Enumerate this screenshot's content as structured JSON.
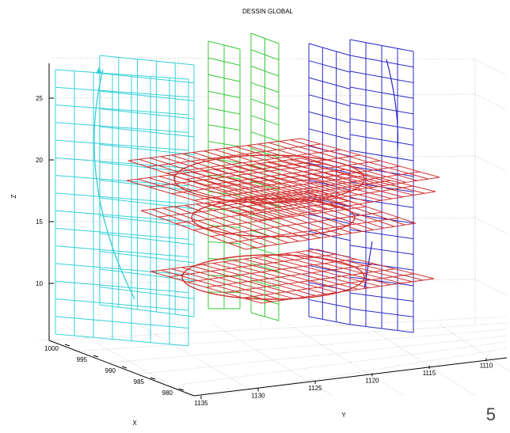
{
  "chart_data": {
    "type": "3d-surface-wireframe",
    "title": "DESSIN GLOBAL",
    "xlabel": "X",
    "ylabel": "Y",
    "zlabel": "Z",
    "z_ticks": [
      "10",
      "15",
      "20",
      "25"
    ],
    "x_ticks": [
      "1000",
      "995",
      "990",
      "985",
      "980"
    ],
    "y_ticks": [
      "1135",
      "1130",
      "1125",
      "1120",
      "1115",
      "1110"
    ],
    "zlim": [
      6,
      28
    ],
    "grid": true,
    "series": [
      {
        "color": "#35d0d8"
      },
      {
        "color": "#37c837"
      },
      {
        "color": "#2828c8"
      },
      {
        "color": "#d23030"
      }
    ]
  },
  "page_number": "5"
}
